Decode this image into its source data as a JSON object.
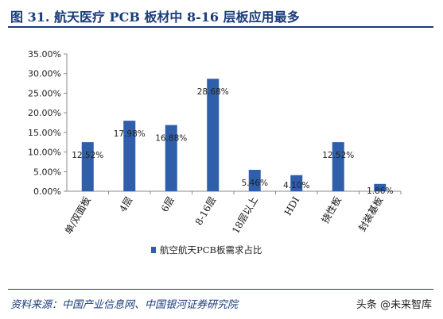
{
  "figure": {
    "title": "图 31. 航天医疗 PCB 板材中 8-16 层板应用最多",
    "source": "资料来源：中国产业信息网、中国银河证券研究院",
    "watermark": "头条 @未来智库"
  },
  "chart_data": {
    "type": "bar",
    "categories": [
      "单/双面板",
      "4层",
      "6层",
      "8-16层",
      "18层以上",
      "HDI",
      "挠性板",
      "封装基板"
    ],
    "series": [
      {
        "name": "航空航天PCB板需求占比",
        "values": [
          12.52,
          17.98,
          16.88,
          28.68,
          5.46,
          4.1,
          12.52,
          1.86
        ],
        "labels": [
          "12.52%",
          "17.98%",
          "16.88%",
          "28.68%",
          "5.46%",
          "4.10%",
          "12.52%",
          "1.86%"
        ],
        "color": "#2f5faa"
      }
    ],
    "ylim": [
      0,
      35
    ],
    "yticks": [
      "0.00%",
      "5.00%",
      "10.00%",
      "15.00%",
      "20.00%",
      "25.00%",
      "30.00%",
      "35.00%"
    ],
    "ytick_values": [
      0,
      5,
      10,
      15,
      20,
      25,
      30,
      35
    ],
    "grid": false,
    "legend": "bottom"
  }
}
